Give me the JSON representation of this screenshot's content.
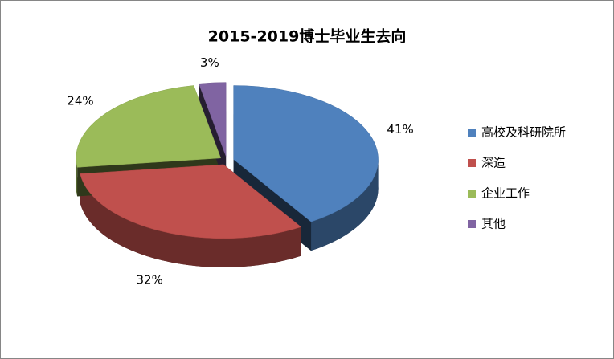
{
  "chart_data": {
    "type": "pie",
    "title": "2015-2019博士毕业生去向",
    "categories": [
      "高校及科研院所",
      "深造",
      "企业工作",
      "其他"
    ],
    "values": [
      41,
      32,
      24,
      3
    ],
    "value_labels": [
      "41%",
      "32%",
      "24%",
      "3%"
    ],
    "colors": [
      "#4f81bd",
      "#c0504d",
      "#9bbb59",
      "#8064a2"
    ],
    "legend": "right"
  }
}
